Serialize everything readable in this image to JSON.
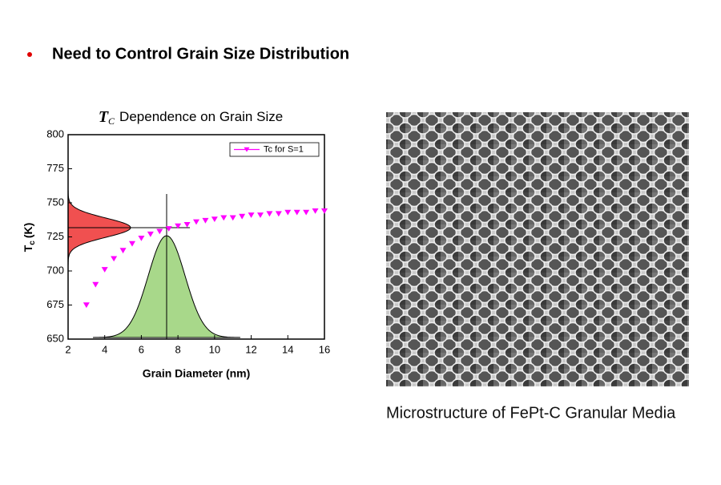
{
  "header": {
    "text": "Need to Control Grain Size Distribution"
  },
  "chart_data": {
    "type": "scatter",
    "title_symbol": "T",
    "title_subscript": "C",
    "title": "Dependence on Grain Size",
    "xlabel": "Grain Diameter (nm)",
    "ylabel_symbol": "T",
    "ylabel_subscript": "c",
    "ylabel": "(K)",
    "xlim": [
      2,
      16
    ],
    "xticks": [
      2,
      4,
      6,
      8,
      10,
      12,
      14,
      16
    ],
    "ylim": [
      650,
      800
    ],
    "yticks": [
      650,
      675,
      700,
      725,
      750,
      775,
      800
    ],
    "legend": "upper right",
    "series": [
      {
        "name": "Tc for S=1",
        "color": "#ff00ff",
        "x": [
          3,
          3.5,
          4,
          4.5,
          5,
          5.5,
          6,
          6.5,
          7,
          7.5,
          8,
          8.5,
          9,
          9.5,
          10,
          10.5,
          11,
          11.5,
          12,
          12.5,
          13,
          13.5,
          14,
          14.5,
          15,
          15.5,
          16
        ],
        "values": [
          675,
          690,
          701,
          709,
          715,
          720,
          724,
          727,
          729,
          731,
          733,
          734,
          736,
          737,
          738,
          739,
          739,
          740,
          741,
          741,
          742,
          742,
          743,
          743,
          743,
          744,
          744
        ]
      }
    ]
  },
  "image": {
    "caption": "Microstructure of FePt-C Granular Media"
  }
}
